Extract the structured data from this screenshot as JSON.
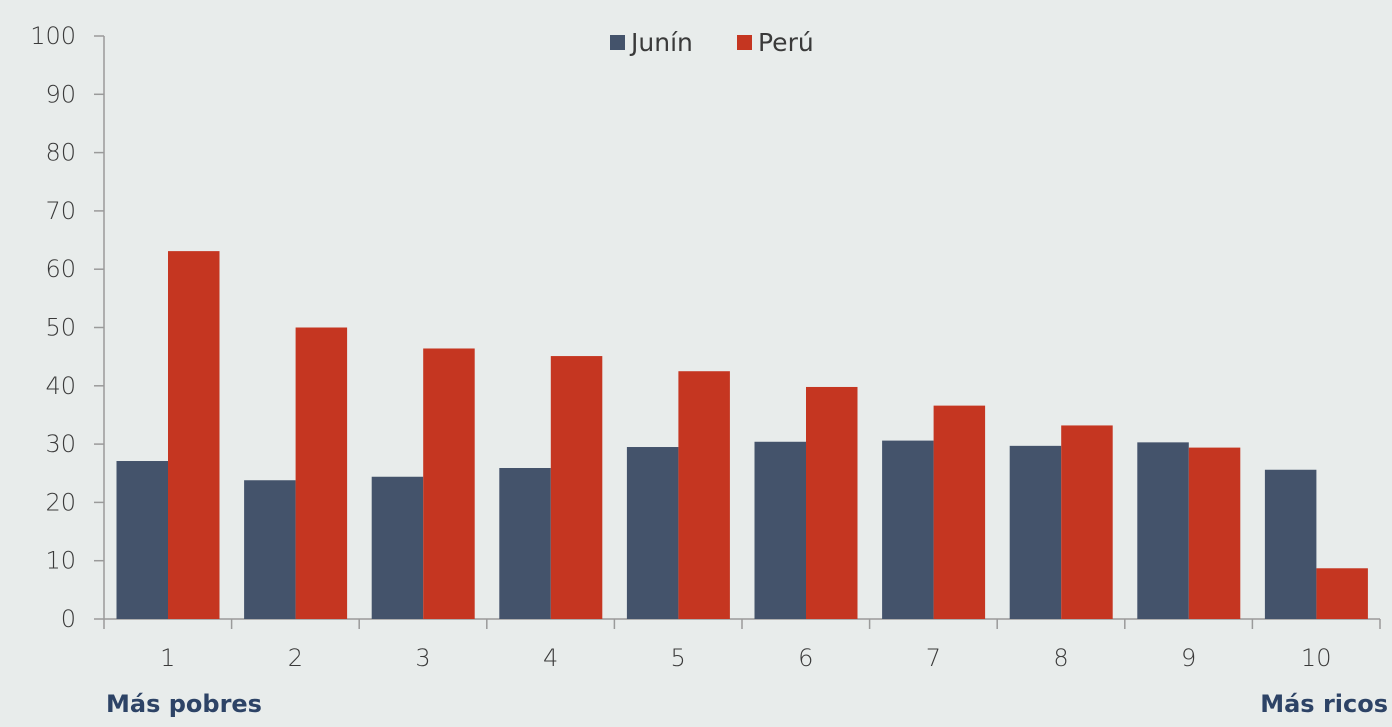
{
  "chart_data": {
    "type": "bar",
    "categories": [
      "1",
      "2",
      "3",
      "4",
      "5",
      "6",
      "7",
      "8",
      "9",
      "10"
    ],
    "series": [
      {
        "name": "Junín",
        "color": "#44536b",
        "values": [
          27.1,
          23.8,
          24.4,
          25.9,
          29.5,
          30.4,
          30.6,
          29.7,
          30.3,
          25.6
        ]
      },
      {
        "name": "Perú",
        "color": "#c53621",
        "values": [
          63.1,
          50.0,
          46.4,
          45.1,
          42.5,
          39.8,
          36.6,
          33.2,
          29.4,
          8.7
        ]
      }
    ],
    "yticks": [
      "0",
      "10",
      "20",
      "30",
      "40",
      "50",
      "60",
      "70",
      "80",
      "90",
      "100"
    ],
    "ylim": [
      0,
      100
    ],
    "legend_position": "top-center",
    "grid": false,
    "axis_annotations": {
      "left": "Más pobres",
      "right": "Más ricos"
    },
    "background": "#e8eceb",
    "axis_color": "#9a9a9a"
  }
}
